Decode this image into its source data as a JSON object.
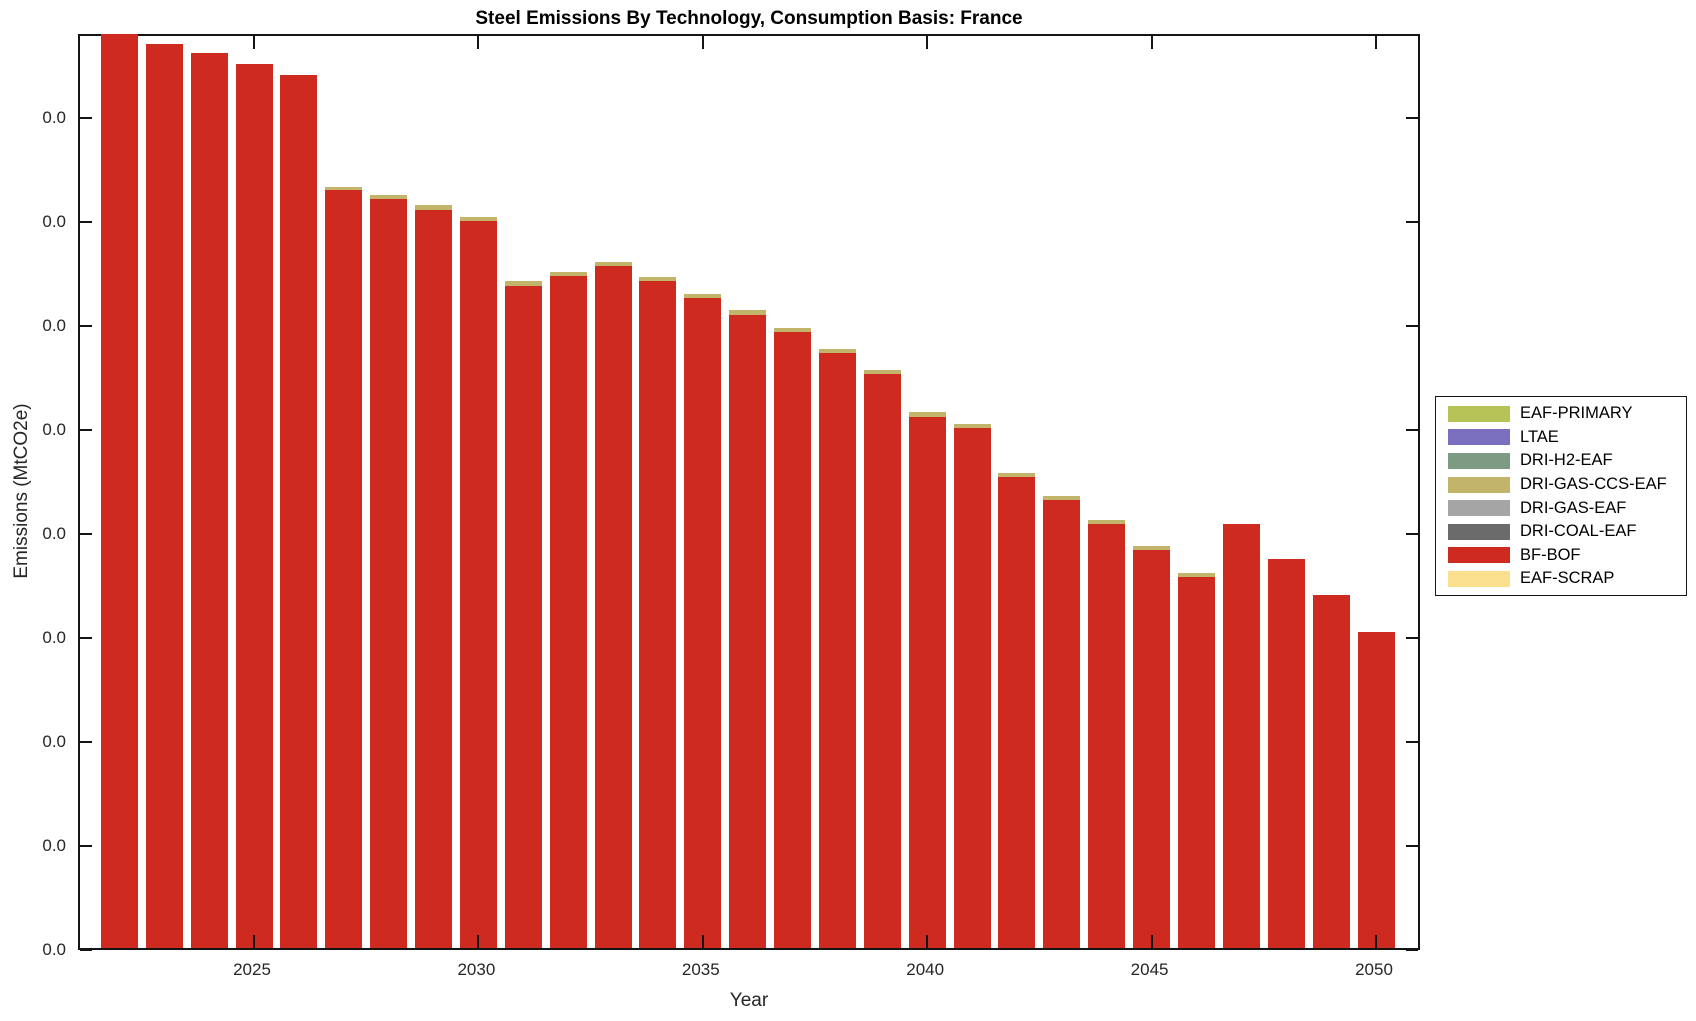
{
  "chart_data": {
    "type": "bar",
    "stacked": true,
    "title": "Steel Emissions By Technology, Consumption Basis: France",
    "xlabel": "Year",
    "ylabel": "Emissions (MtCO2e)",
    "grid": false,
    "legend_position": "right-outside",
    "x": [
      2022,
      2023,
      2024,
      2025,
      2026,
      2027,
      2028,
      2029,
      2030,
      2031,
      2032,
      2033,
      2034,
      2035,
      2036,
      2037,
      2038,
      2039,
      2040,
      2041,
      2042,
      2043,
      2044,
      2045,
      2046,
      2047,
      2048,
      2049,
      2050
    ],
    "x_tick_years": [
      2025,
      2030,
      2035,
      2040,
      2045,
      2050
    ],
    "x_tick_labels": [
      "2025",
      "2030",
      "2035",
      "2040",
      "2045",
      "2050"
    ],
    "y_tick_labels": [
      "0.0",
      "0.0",
      "0.0",
      "0.0",
      "0.0",
      "0.0",
      "0.0",
      "0.0",
      "0.0"
    ],
    "y_unit_note": "Every y-axis tick label renders as 0.0; series values below are expressed in axis tick units (1.0 = spacing between adjacent y ticks)",
    "ylim": [
      0,
      8.81
    ],
    "series": [
      {
        "name": "BF-BOF",
        "color": "#cf2a20",
        "values": [
          8.81,
          8.69,
          8.61,
          8.5,
          8.39,
          7.29,
          7.2,
          7.1,
          6.99,
          6.37,
          6.46,
          6.56,
          6.41,
          6.25,
          6.09,
          5.92,
          5.72,
          5.52,
          5.11,
          5.0,
          4.53,
          4.31,
          4.08,
          3.83,
          3.57,
          4.08,
          3.74,
          3.39,
          3.04
        ]
      },
      {
        "name": "DRI-GAS-CCS-EAF",
        "color": "#c3b46c",
        "values": [
          0,
          0,
          0,
          0,
          0,
          0.03,
          0.04,
          0.04,
          0.04,
          0.04,
          0.04,
          0.04,
          0.04,
          0.04,
          0.04,
          0.04,
          0.04,
          0.04,
          0.04,
          0.04,
          0.04,
          0.04,
          0.04,
          0.04,
          0.04,
          0,
          0,
          0,
          0
        ]
      },
      {
        "name": "DRI-COAL-EAF",
        "color": "#6b6b6b",
        "values": [
          0,
          0,
          0,
          0,
          0,
          0,
          0,
          0,
          0,
          0,
          0,
          0,
          0,
          0,
          0,
          0,
          0,
          0,
          0,
          0,
          0,
          0,
          0,
          0,
          0,
          0,
          0,
          0,
          0
        ]
      },
      {
        "name": "DRI-GAS-EAF",
        "color": "#a5a5a5",
        "values": [
          0,
          0,
          0,
          0,
          0,
          0,
          0,
          0,
          0,
          0,
          0,
          0,
          0,
          0,
          0,
          0,
          0,
          0,
          0,
          0,
          0,
          0,
          0,
          0,
          0,
          0,
          0,
          0,
          0
        ]
      },
      {
        "name": "DRI-H2-EAF",
        "color": "#7d9b82",
        "values": [
          0,
          0,
          0,
          0,
          0,
          0,
          0,
          0,
          0,
          0,
          0,
          0,
          0,
          0,
          0,
          0,
          0,
          0,
          0,
          0,
          0,
          0,
          0,
          0,
          0,
          0,
          0,
          0,
          0
        ]
      },
      {
        "name": "LTAE",
        "color": "#7a6fbe",
        "values": [
          0,
          0,
          0,
          0,
          0,
          0,
          0,
          0,
          0,
          0,
          0,
          0,
          0,
          0,
          0,
          0,
          0,
          0,
          0,
          0,
          0,
          0,
          0,
          0,
          0,
          0,
          0,
          0,
          0
        ]
      },
      {
        "name": "EAF-PRIMARY",
        "color": "#b6c356",
        "values": [
          0,
          0,
          0,
          0,
          0,
          0,
          0,
          0,
          0,
          0,
          0,
          0,
          0,
          0,
          0,
          0,
          0,
          0,
          0,
          0,
          0,
          0,
          0,
          0,
          0,
          0,
          0,
          0,
          0
        ]
      },
      {
        "name": "EAF-SCRAP",
        "color": "#fadf8e",
        "values": [
          0,
          0,
          0,
          0,
          0,
          0,
          0,
          0,
          0,
          0,
          0,
          0,
          0,
          0,
          0,
          0,
          0,
          0,
          0,
          0,
          0,
          0,
          0,
          0,
          0,
          0,
          0,
          0,
          0
        ]
      }
    ],
    "legend_order": [
      "EAF-PRIMARY",
      "LTAE",
      "DRI-H2-EAF",
      "DRI-GAS-CCS-EAF",
      "DRI-GAS-EAF",
      "DRI-COAL-EAF",
      "BF-BOF",
      "EAF-SCRAP"
    ]
  }
}
